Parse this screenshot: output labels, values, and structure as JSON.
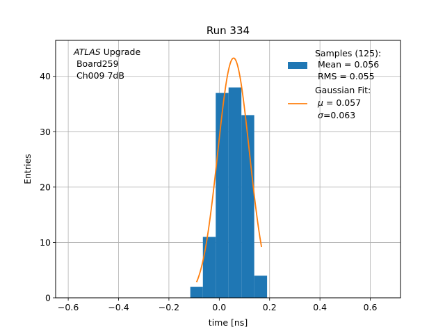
{
  "chart_data": {
    "type": "bar",
    "title": "Run 334",
    "xlabel": "time [ns]",
    "ylabel": "Entries",
    "xlim": [
      -0.65,
      0.72
    ],
    "ylim": [
      0,
      46.5
    ],
    "xticks": [
      -0.6,
      -0.4,
      -0.2,
      0.0,
      0.2,
      0.4,
      0.6
    ],
    "xtick_labels": [
      "−0.6",
      "−0.4",
      "−0.2",
      "0.0",
      "0.2",
      "0.4",
      "0.6"
    ],
    "yticks": [
      0,
      10,
      20,
      30,
      40
    ],
    "ytick_labels": [
      "0",
      "10",
      "20",
      "30",
      "40"
    ],
    "grid": true,
    "annotation": {
      "atlas": "ATLAS",
      "upgrade": " Upgrade",
      "board": " Board259",
      "channel": " Ch009 7dB"
    },
    "histogram": {
      "name": "Samples",
      "color": "#1f77b4",
      "bins": [
        {
          "x0": -0.115,
          "x1": -0.065,
          "count": 2
        },
        {
          "x0": -0.065,
          "x1": -0.014,
          "count": 11
        },
        {
          "x0": -0.014,
          "x1": 0.037,
          "count": 37
        },
        {
          "x0": 0.037,
          "x1": 0.088,
          "count": 38
        },
        {
          "x0": 0.088,
          "x1": 0.139,
          "count": 33
        },
        {
          "x0": 0.139,
          "x1": 0.19,
          "count": 4
        }
      ]
    },
    "gaussian_fit": {
      "name": "Gaussian Fit",
      "color": "#ff7f0e",
      "mu": 0.057,
      "sigma": 0.063,
      "amplitude": 43.3,
      "x_range": [
        -0.09,
        0.168
      ]
    },
    "legend": {
      "placement": "upper right",
      "samples_line1": "Samples (125):",
      "samples_line2": " Mean = 0.056",
      "samples_line3": " RMS = 0.055",
      "fit_line1": "Gaussian Fit:",
      "fit_mu_symbol": "μ",
      "fit_mu_value": " = 0.057",
      "fit_sigma_symbol": "σ",
      "fit_sigma_value": "=0.063"
    }
  }
}
